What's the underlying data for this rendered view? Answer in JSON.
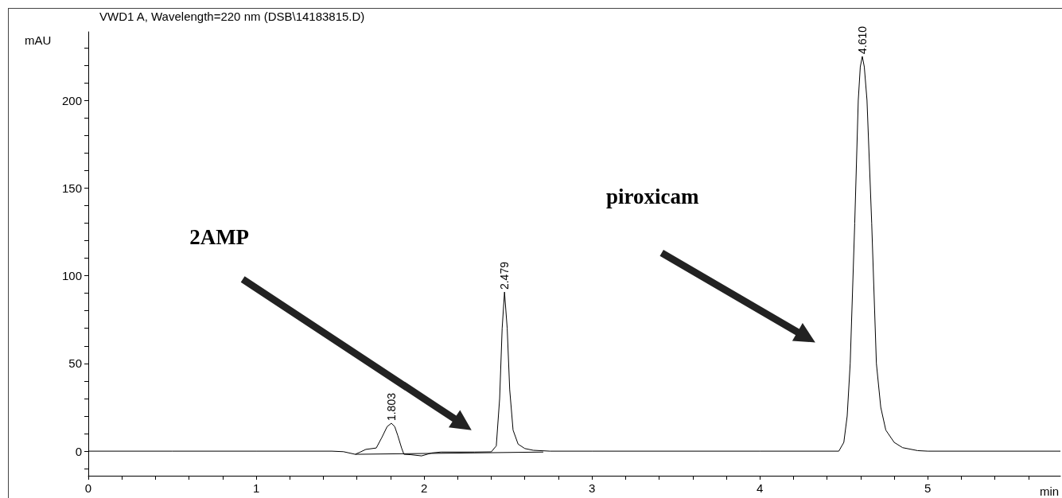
{
  "chart_data": {
    "type": "line",
    "title": "VWD1 A, Wavelength=220 nm (DSB\\14183815.D)",
    "xlabel": "min",
    "ylabel": "mAU",
    "xlim": [
      0,
      5.79
    ],
    "ylim": [
      -14,
      239
    ],
    "xticks": [
      0,
      {
        "value": 0.2,
        "label": null
      },
      {
        "value": 0.4,
        "label": null
      },
      {
        "value": 0.6,
        "label": null
      },
      {
        "value": 0.8,
        "label": null
      },
      1,
      {
        "value": 1.2,
        "label": null
      },
      {
        "value": 1.4,
        "label": null
      },
      {
        "value": 1.6,
        "label": null
      },
      {
        "value": 1.8,
        "label": null
      },
      2,
      {
        "value": 2.2,
        "label": null
      },
      {
        "value": 2.4,
        "label": null
      },
      {
        "value": 2.6,
        "label": null
      },
      {
        "value": 2.8,
        "label": null
      },
      3,
      {
        "value": 3.2,
        "label": null
      },
      {
        "value": 3.4,
        "label": null
      },
      {
        "value": 3.6,
        "label": null
      },
      {
        "value": 3.8,
        "label": null
      },
      4,
      {
        "value": 4.2,
        "label": null
      },
      {
        "value": 4.4,
        "label": null
      },
      {
        "value": 4.6,
        "label": null
      },
      {
        "value": 4.8,
        "label": null
      },
      5,
      {
        "value": 5.2,
        "label": null
      },
      {
        "value": 5.4,
        "label": null
      },
      {
        "value": 5.6,
        "label": null
      }
    ],
    "yticks": [
      {
        "value": -10,
        "label": null
      },
      0,
      {
        "value": 10,
        "label": null
      },
      {
        "value": 20,
        "label": null
      },
      {
        "value": 30,
        "label": null
      },
      {
        "value": 40,
        "label": null
      },
      50,
      {
        "value": 60,
        "label": null
      },
      {
        "value": 70,
        "label": null
      },
      {
        "value": 80,
        "label": null
      },
      {
        "value": 90,
        "label": null
      },
      100,
      {
        "value": 110,
        "label": null
      },
      {
        "value": 120,
        "label": null
      },
      {
        "value": 130,
        "label": null
      },
      {
        "value": 140,
        "label": null
      },
      150,
      {
        "value": 160,
        "label": null
      },
      {
        "value": 170,
        "label": null
      },
      {
        "value": 180,
        "label": null
      },
      {
        "value": 190,
        "label": null
      },
      200,
      {
        "value": 210,
        "label": null
      },
      {
        "value": 220,
        "label": null
      },
      {
        "value": 230,
        "label": null
      }
    ],
    "marker": "none",
    "grid": false,
    "series": [
      {
        "color": "#000000",
        "x": [
          0,
          0.5,
          1.0,
          1.45,
          1.52,
          1.59,
          1.62,
          1.653,
          1.715,
          1.748,
          1.78,
          1.805,
          1.825,
          1.843,
          1.866,
          1.88,
          1.92,
          1.985,
          2.046,
          2.1,
          2.3,
          2.4,
          2.43,
          2.45,
          2.465,
          2.479,
          2.495,
          2.51,
          2.53,
          2.56,
          2.6,
          2.65,
          2.75,
          3.0,
          4.0,
          4.47,
          4.5,
          4.52,
          4.538,
          4.565,
          4.586,
          4.598,
          4.61,
          4.622,
          4.638,
          4.666,
          4.694,
          4.72,
          4.75,
          4.8,
          4.85,
          4.94,
          5.0,
          5.79
        ],
        "values": [
          0,
          0,
          0,
          0,
          -0.3,
          -1.8,
          -0.5,
          1,
          1.8,
          7.7,
          14,
          15.9,
          14,
          9,
          1.8,
          -1.8,
          -2,
          -2.7,
          -1,
          -0.5,
          -0.5,
          -0.4,
          3,
          30,
          70,
          90.7,
          70,
          35,
          12,
          4,
          1.5,
          0.5,
          0,
          0,
          0,
          0,
          5,
          20,
          50,
          130,
          200,
          219,
          225,
          219,
          200,
          130,
          50,
          25,
          12,
          5,
          2,
          0.3,
          0,
          0
        ]
      },
      {
        "color": "#000000",
        "x": [
          1.59,
          2.71
        ],
        "values": [
          -1.8,
          -0.5
        ]
      }
    ],
    "annotations": [
      {
        "text": "1.803",
        "x": 1.803,
        "y": 15.9
      },
      {
        "text": "2.479",
        "x": 2.479,
        "y": 90.7
      },
      {
        "text": "4.610",
        "x": 4.61,
        "y": 225
      },
      "2AMP",
      "piroxicam"
    ]
  }
}
